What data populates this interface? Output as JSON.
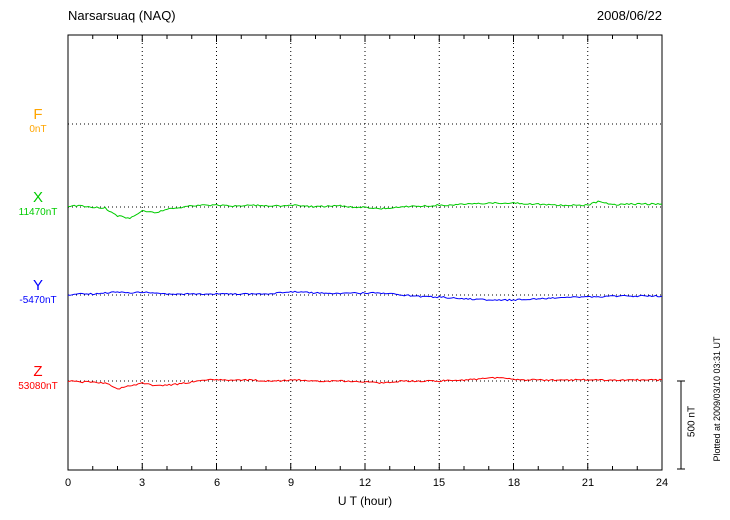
{
  "header": {
    "title": "Narsarsuaq (NAQ)",
    "date": "2008/06/22"
  },
  "axis": {
    "xlabel": "U T (hour)",
    "ticks": [
      "0",
      "3",
      "6",
      "9",
      "12",
      "15",
      "18",
      "21",
      "24"
    ]
  },
  "scalebar": {
    "label": "500 nT",
    "value_nT": 500
  },
  "footer": {
    "note": "Plotted at 2009/03/10 03:31 UT"
  },
  "chart_data": {
    "type": "line",
    "title": "Narsarsuaq (NAQ)",
    "date": "2008/06/22",
    "xlabel": "U T (hour)",
    "x_range_hours": [
      0,
      24
    ],
    "x_ticks": [
      0,
      3,
      6,
      9,
      12,
      15,
      18,
      21,
      24
    ],
    "x_step_hours": 0.5,
    "unit": "nT",
    "scale_bar_nT": 500,
    "grid": "dotted",
    "values_units": "nT deviation from each component baseline",
    "series": [
      {
        "name": "F",
        "baseline_label": "0nT",
        "baseline_nT": 0,
        "color": "#ffa500",
        "values": []
      },
      {
        "name": "X",
        "baseline_label": "11470nT",
        "baseline_nT": 11470,
        "color": "#00cc00",
        "values": [
          6,
          6,
          0,
          -6,
          -51,
          -63,
          -23,
          -34,
          -11,
          -6,
          6,
          11,
          11,
          6,
          6,
          11,
          6,
          6,
          11,
          6,
          0,
          6,
          6,
          0,
          0,
          -11,
          -6,
          0,
          6,
          6,
          11,
          11,
          17,
          17,
          23,
          23,
          23,
          17,
          17,
          11,
          11,
          11,
          11,
          34,
          11,
          17,
          17,
          17,
          17
        ]
      },
      {
        "name": "Y",
        "baseline_label": "-5470nT",
        "baseline_nT": -5470,
        "color": "#0000ff",
        "values": [
          0,
          6,
          6,
          11,
          17,
          11,
          17,
          11,
          6,
          6,
          6,
          6,
          6,
          6,
          6,
          6,
          6,
          11,
          17,
          17,
          11,
          11,
          11,
          11,
          11,
          11,
          6,
          0,
          -6,
          -11,
          -11,
          -17,
          -23,
          -23,
          -28,
          -28,
          -28,
          -23,
          -23,
          -17,
          -17,
          -11,
          -11,
          -11,
          -6,
          -6,
          -6,
          -6,
          -6
        ]
      },
      {
        "name": "Z",
        "baseline_label": "53080nT",
        "baseline_nT": 53080,
        "color": "#ff0000",
        "values": [
          0,
          -6,
          -6,
          -11,
          -45,
          -28,
          -11,
          -28,
          -23,
          -17,
          -6,
          6,
          6,
          6,
          6,
          6,
          0,
          0,
          6,
          6,
          0,
          0,
          0,
          0,
          -6,
          -11,
          -6,
          0,
          0,
          0,
          0,
          6,
          6,
          11,
          17,
          17,
          11,
          6,
          6,
          6,
          6,
          6,
          6,
          6,
          6,
          6,
          6,
          6,
          6
        ]
      }
    ]
  }
}
